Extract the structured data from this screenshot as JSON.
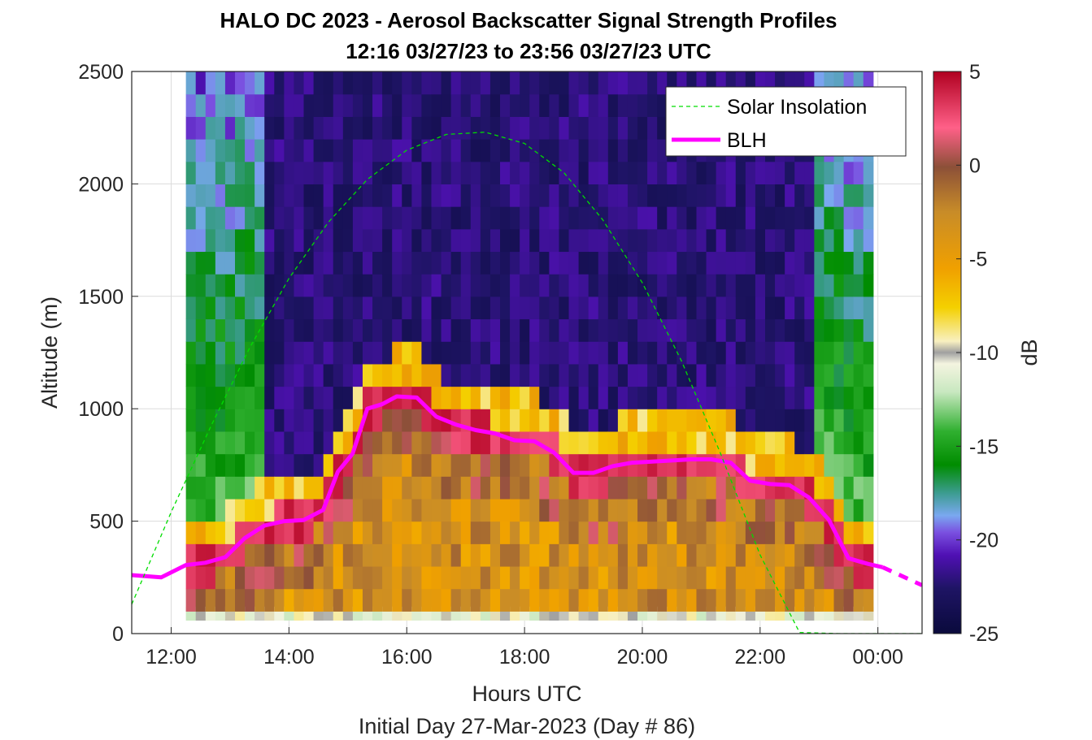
{
  "chart_data": {
    "type": "heatmap",
    "title": "HALO DC 2023 - Aerosol Backscatter Signal Strength Profiles",
    "subtitle": "12:16 03/27/23 to 23:56 03/27/23  UTC",
    "xlabel": "Hours UTC",
    "xlabel2": "Initial Day 27-Mar-2023 (Day # 86)",
    "ylabel": "Altitude (m)",
    "colorbar_label": "dB",
    "xlim": [
      11.33,
      24.75
    ],
    "ylim": [
      0,
      2500
    ],
    "x_ticks": [
      12,
      14,
      16,
      18,
      20,
      22,
      24
    ],
    "x_tick_labels": [
      "12:00",
      "14:00",
      "16:00",
      "18:00",
      "20:00",
      "22:00",
      "00:00"
    ],
    "y_ticks": [
      0,
      500,
      1000,
      1500,
      2000,
      2500
    ],
    "y_tick_labels": [
      "0",
      "500",
      "1000",
      "1500",
      "2000",
      "2500"
    ],
    "colorbar_ticks": [
      5,
      0,
      -5,
      -10,
      -15,
      -20,
      -25
    ],
    "colorbar_tick_labels": [
      "5",
      "0",
      "-5",
      "-10",
      "-15",
      "-20",
      "-25"
    ],
    "clim": [
      -25,
      5
    ],
    "grid": true,
    "legend_position": "top-right",
    "legend": [
      "Solar Insolation",
      "BLH"
    ],
    "series": [
      {
        "name": "BLH",
        "color": "#ff00ff",
        "x": [
          11.33,
          11.83,
          12.25,
          12.58,
          12.92,
          13.25,
          13.58,
          13.92,
          14.25,
          14.58,
          14.83,
          15.08,
          15.33,
          15.58,
          15.83,
          16.17,
          16.5,
          16.83,
          17.17,
          17.5,
          17.83,
          18.17,
          18.5,
          18.83,
          19.17,
          19.5,
          19.83,
          20.17,
          20.5,
          20.83,
          21.17,
          21.5,
          21.83,
          22.17,
          22.5,
          22.83,
          23.17,
          23.5,
          23.83,
          24.08
        ],
        "y": [
          260,
          250,
          305,
          315,
          340,
          425,
          480,
          500,
          505,
          550,
          720,
          800,
          1000,
          1020,
          1055,
          1050,
          965,
          930,
          905,
          890,
          860,
          855,
          805,
          715,
          715,
          745,
          760,
          765,
          770,
          775,
          775,
          760,
          680,
          665,
          660,
          605,
          505,
          335,
          310,
          295
        ]
      },
      {
        "name": "BLH",
        "color": "#ff00ff",
        "dashed": true,
        "x": [
          24.08,
          24.75
        ],
        "y": [
          295,
          215
        ]
      },
      {
        "name": "Solar Insolation",
        "color": "#00dd00",
        "dashed": true,
        "x": [
          11.33,
          12.0,
          12.67,
          13.33,
          14.0,
          14.67,
          15.33,
          16.0,
          16.67,
          17.33,
          18.0,
          18.67,
          19.33,
          20.0,
          20.67,
          21.33,
          22.0,
          22.67,
          23.33,
          23.67,
          24.75
        ],
        "y": [
          130,
          540,
          920,
          1270,
          1580,
          1830,
          2020,
          2150,
          2220,
          2230,
          2180,
          2050,
          1840,
          1560,
          1210,
          800,
          350,
          5,
          0,
          0,
          0
        ]
      }
    ],
    "heatmap_data": {
      "x_start": 12.25,
      "column_width": 0.1667,
      "altitude_bins_m": [
        90,
        150,
        250,
        350,
        450,
        550,
        650,
        750,
        850,
        950,
        1050,
        1150,
        1250,
        1350,
        1450,
        1550,
        1650,
        1750,
        1850,
        1950,
        2050,
        2150,
        2250,
        2350,
        2450
      ],
      "note_values": "per-column mean dB profile (columns between 12:16 and 23:56)"
    }
  }
}
